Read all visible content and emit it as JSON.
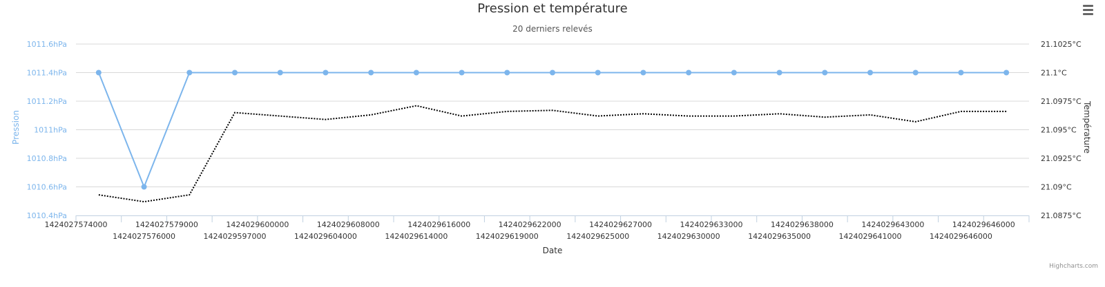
{
  "chart_data": {
    "type": "line",
    "title": "Pression et température",
    "subtitle": "20 derniers relevés",
    "xlabel": "Date",
    "categories": [
      "1424027574000",
      "1424027576000",
      "1424027579000",
      "1424029597000",
      "1424029600000",
      "1424029604000",
      "1424029608000",
      "1424029614000",
      "1424029616000",
      "1424029619000",
      "1424029622000",
      "1424029625000",
      "1424029627000",
      "1424029630000",
      "1424029633000",
      "1424029635000",
      "1424029638000",
      "1424029641000",
      "1424029643000",
      "1424029646000",
      "1424029646000"
    ],
    "yaxis_left": {
      "label": "Pression",
      "ticks": [
        "1010.4hPa",
        "1010.6hPa",
        "1010.8hPa",
        "1011hPa",
        "1011.2hPa",
        "1011.4hPa",
        "1011.6hPa"
      ],
      "ylim": [
        1010.4,
        1011.6
      ]
    },
    "yaxis_right": {
      "label": "Température",
      "ticks": [
        "21.0875°C",
        "21.09°C",
        "21.0925°C",
        "21.095°C",
        "21.0975°C",
        "21.1°C",
        "21.1025°C"
      ],
      "ylim": [
        21.0875,
        21.1025
      ]
    },
    "series": [
      {
        "color": "#7cb5ec",
        "axis": "left",
        "style": "solid-markers",
        "values": [
          1011.4,
          1010.6,
          1011.4,
          1011.4,
          1011.4,
          1011.4,
          1011.4,
          1011.4,
          1011.4,
          1011.4,
          1011.4,
          1011.4,
          1011.4,
          1011.4,
          1011.4,
          1011.4,
          1011.4,
          1011.4,
          1011.4,
          1011.4,
          1011.4
        ]
      },
      {
        "color": "#000000",
        "axis": "right",
        "style": "dotted",
        "values": [
          21.0893,
          21.0887,
          21.0893,
          21.0965,
          21.0962,
          21.0959,
          21.0963,
          21.0971,
          21.0962,
          21.0966,
          21.0967,
          21.0962,
          21.0964,
          21.0962,
          21.0962,
          21.0964,
          21.0961,
          21.0963,
          21.0957,
          21.0966,
          21.0966
        ]
      }
    ],
    "grid": true,
    "credits": "Highcharts.com"
  },
  "icons": {
    "menu": "hamburger-menu-icon"
  }
}
